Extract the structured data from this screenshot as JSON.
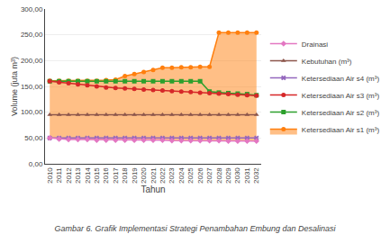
{
  "chart_data": {
    "type": "line",
    "x": [
      2010,
      2011,
      2012,
      2013,
      2014,
      2015,
      2016,
      2017,
      2018,
      2019,
      2020,
      2021,
      2022,
      2023,
      2024,
      2025,
      2026,
      2027,
      2028,
      2029,
      2030,
      2031,
      2032
    ],
    "xlabel": "Tahun",
    "ylabel": "Volume (juta m³)",
    "annotations": [
      "Gambar 6. Grafik Implementasi Strategi Penambahan Embung dan Desalinasi"
    ],
    "series": [
      {
        "name": "Ketersediaan Air s1 (m³)",
        "marker": "circle",
        "values": [
          161,
          161,
          161,
          161,
          161,
          161,
          162,
          163,
          170,
          174,
          178,
          182,
          186,
          186,
          187,
          187,
          188,
          188,
          254,
          254,
          254,
          254,
          254
        ]
      },
      {
        "name": "Ketersediaan Air s2 (m³)",
        "marker": "square",
        "values": [
          160,
          160,
          160,
          160,
          160,
          160,
          160,
          160,
          160,
          160,
          160,
          160,
          160,
          160,
          160,
          160,
          160,
          140,
          138,
          137,
          136,
          135,
          133
        ]
      },
      {
        "name": "Ketersediaan Air s3 (m³)",
        "marker": "circle",
        "values": [
          160,
          158,
          156,
          154,
          152,
          150,
          148,
          147,
          146,
          145,
          144,
          143,
          142,
          141,
          140,
          139,
          138,
          137,
          136,
          135,
          134,
          133,
          132
        ]
      },
      {
        "name": "Ketersediaan Air s4 (m³)",
        "marker": "x",
        "values": [
          50,
          50,
          50,
          50,
          50,
          50,
          50,
          50,
          50,
          50,
          50,
          50,
          50,
          50,
          50,
          50,
          50,
          50,
          50,
          50,
          50,
          50,
          50
        ]
      },
      {
        "name": "Kebutuhan (m³)",
        "marker": "triangle",
        "values": [
          95,
          95,
          95,
          95,
          95,
          95,
          95,
          95,
          95,
          95,
          95,
          95,
          95,
          95,
          95,
          95,
          95,
          95,
          95,
          95,
          95,
          95,
          95
        ]
      },
      {
        "name": "Drainasi",
        "marker": "diamond",
        "values": [
          50,
          48,
          47,
          47,
          47,
          46,
          46,
          46,
          46,
          46,
          46,
          46,
          46,
          45,
          45,
          45,
          45,
          45,
          45,
          44,
          44,
          44,
          44
        ]
      }
    ],
    "xlim": [
      2009.5,
      2032.5
    ],
    "xticks": [
      2010,
      2011,
      2012,
      2013,
      2014,
      2015,
      2016,
      2017,
      2018,
      2019,
      2020,
      2021,
      2022,
      2023,
      2024,
      2025,
      2026,
      2027,
      2028,
      2029,
      2030,
      2031,
      2032
    ],
    "ylim": [
      0,
      300
    ],
    "yticks": [
      {
        "value": 0,
        "label": "0,00"
      },
      {
        "value": 50,
        "label": "50,00"
      },
      {
        "value": 100,
        "label": "100,00"
      },
      {
        "value": 150,
        "label": "150,00"
      },
      {
        "value": 200,
        "label": "200,00"
      },
      {
        "value": 250,
        "label": "250,00"
      },
      {
        "value": 300,
        "label": "300,00"
      }
    ],
    "grid": true,
    "legend": "right"
  }
}
